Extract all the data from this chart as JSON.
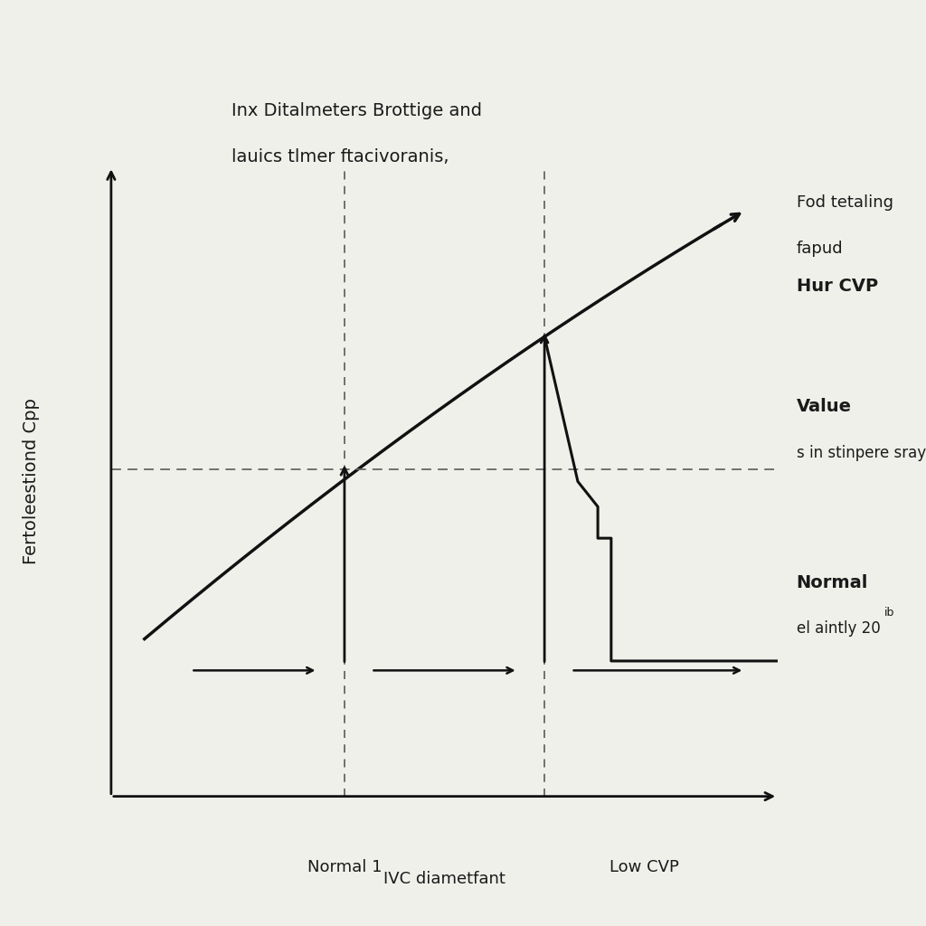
{
  "title_line1": "Inx Ditalmeters Brottige and",
  "title_line2": "lauics tlmer ftacivoranis,",
  "xlabel": "IVC diametfant",
  "ylabel": "Fertoleestiond Cpp",
  "x_label_normal": "Normal 1",
  "x_label_low": "Low CVP",
  "annotation_high_line1": "Fod tetaling",
  "annotation_high_line2": "fapud",
  "annotation_high_line3": "Hur CVP",
  "annotation_mid_line1": "Value",
  "annotation_mid_line2": "s in stinpere sray",
  "annotation_low_line1": "Normal",
  "annotation_low_line2": "el aintly 20",
  "annotation_low_superscript": "ib",
  "background_color": "#f0f0eb",
  "text_color": "#1a1a1a",
  "dashed_line_color": "#666666",
  "main_line_color": "#111111",
  "arrow_color": "#111111"
}
